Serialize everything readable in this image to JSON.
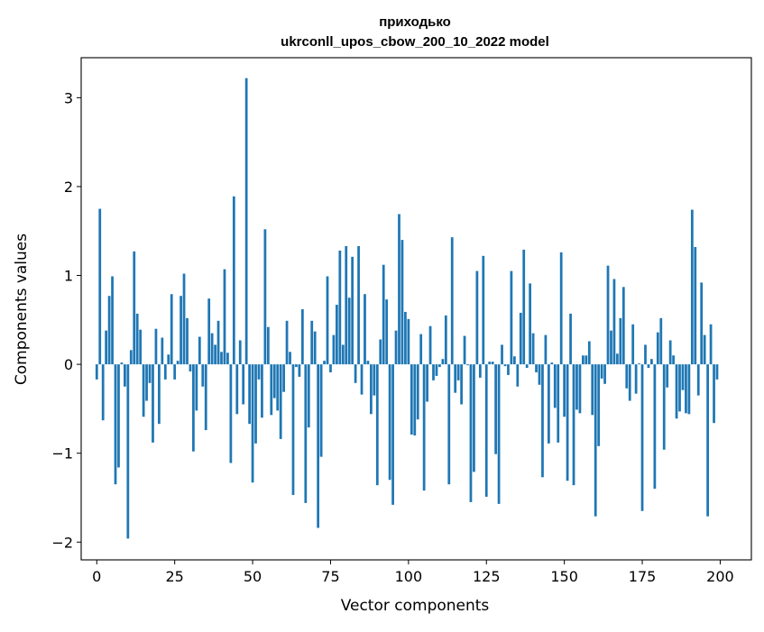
{
  "chart_data": {
    "type": "bar",
    "title_line1": "приходько",
    "title_line2": "ukrconll_upos_cbow_200_10_2022 model",
    "xlabel": "Vector components",
    "ylabel": "Components values",
    "xlim": [
      -5,
      210
    ],
    "ylim": [
      -2.2,
      3.45
    ],
    "xticks": [
      0,
      25,
      50,
      75,
      100,
      125,
      150,
      175,
      200
    ],
    "xtick_labels": [
      "0",
      "25",
      "50",
      "75",
      "100",
      "125",
      "150",
      "175",
      "200"
    ],
    "yticks": [
      -2,
      -1,
      0,
      1,
      2,
      3
    ],
    "ytick_labels": [
      "−2",
      "−1",
      "0",
      "1",
      "2",
      "3"
    ],
    "bar_color": "#1f77b4",
    "grid": false,
    "legend": "none",
    "x": [
      0,
      1,
      2,
      3,
      4,
      5,
      6,
      7,
      8,
      9,
      10,
      11,
      12,
      13,
      14,
      15,
      16,
      17,
      18,
      19,
      20,
      21,
      22,
      23,
      24,
      25,
      26,
      27,
      28,
      29,
      30,
      31,
      32,
      33,
      34,
      35,
      36,
      37,
      38,
      39,
      40,
      41,
      42,
      43,
      44,
      45,
      46,
      47,
      48,
      49,
      50,
      51,
      52,
      53,
      54,
      55,
      56,
      57,
      58,
      59,
      60,
      61,
      62,
      63,
      64,
      65,
      66,
      67,
      68,
      69,
      70,
      71,
      72,
      73,
      74,
      75,
      76,
      77,
      78,
      79,
      80,
      81,
      82,
      83,
      84,
      85,
      86,
      87,
      88,
      89,
      90,
      91,
      92,
      93,
      94,
      95,
      96,
      97,
      98,
      99,
      100,
      101,
      102,
      103,
      104,
      105,
      106,
      107,
      108,
      109,
      110,
      111,
      112,
      113,
      114,
      115,
      116,
      117,
      118,
      119,
      120,
      121,
      122,
      123,
      124,
      125,
      126,
      127,
      128,
      129,
      130,
      131,
      132,
      133,
      134,
      135,
      136,
      137,
      138,
      139,
      140,
      141,
      142,
      143,
      144,
      145,
      146,
      147,
      148,
      149,
      150,
      151,
      152,
      153,
      154,
      155,
      156,
      157,
      158,
      159,
      160,
      161,
      162,
      163,
      164,
      165,
      166,
      167,
      168,
      169,
      170,
      171,
      172,
      173,
      174,
      175,
      176,
      177,
      178,
      179,
      180,
      181,
      182,
      183,
      184,
      185,
      186,
      187,
      188,
      189,
      190,
      191,
      192,
      193,
      194,
      195,
      196,
      197,
      198,
      199
    ],
    "values": [
      -0.17,
      1.75,
      -0.63,
      0.38,
      0.77,
      0.99,
      -1.35,
      -1.16,
      0.02,
      -0.25,
      -1.96,
      0.16,
      1.27,
      0.57,
      0.39,
      -0.59,
      -0.41,
      -0.21,
      -0.88,
      0.4,
      -0.67,
      0.3,
      -0.17,
      0.11,
      0.79,
      -0.17,
      0.04,
      0.77,
      1.02,
      0.52,
      -0.08,
      -0.98,
      -0.52,
      0.31,
      -0.25,
      -0.74,
      0.74,
      0.35,
      0.22,
      0.49,
      0.14,
      1.07,
      0.13,
      -1.11,
      1.89,
      -0.56,
      0.27,
      -0.45,
      3.22,
      -0.67,
      -1.33,
      -0.89,
      -0.17,
      -0.6,
      1.52,
      0.42,
      -0.57,
      -0.38,
      -0.52,
      -0.84,
      -0.31,
      0.49,
      0.14,
      -1.47,
      -0.03,
      -0.14,
      0.62,
      -1.56,
      -0.71,
      0.49,
      0.37,
      -1.84,
      -1.04,
      0.04,
      0.99,
      -0.09,
      0.33,
      0.67,
      1.28,
      0.22,
      1.33,
      0.75,
      1.21,
      -0.21,
      1.33,
      -0.34,
      0.79,
      0.04,
      -0.56,
      -0.35,
      -1.36,
      0.28,
      1.12,
      0.73,
      -1.3,
      -1.58,
      0.38,
      1.69,
      1.4,
      0.59,
      0.51,
      -0.79,
      -0.8,
      -0.62,
      0.34,
      -1.42,
      -0.42,
      0.43,
      -0.18,
      -0.13,
      -0.03,
      0.06,
      0.55,
      -1.35,
      1.43,
      -0.32,
      -0.18,
      -0.45,
      0.32,
      -0.01,
      -1.55,
      -1.21,
      1.05,
      -0.15,
      1.22,
      -1.49,
      0.03,
      0.03,
      -1.01,
      -1.57,
      0.22,
      -0.02,
      -0.12,
      1.05,
      0.09,
      -0.25,
      0.58,
      1.29,
      -0.04,
      0.91,
      0.35,
      -0.09,
      -0.23,
      -1.27,
      0.33,
      -0.89,
      0.02,
      -0.49,
      -0.88,
      1.26,
      -0.59,
      -1.31,
      0.57,
      -1.36,
      -0.51,
      -0.55,
      0.1,
      0.1,
      0.26,
      -0.57,
      -1.71,
      -0.92,
      -0.16,
      -0.22,
      1.11,
      0.38,
      0.96,
      0.12,
      0.52,
      0.87,
      -0.27,
      -0.41,
      0.45,
      -0.33,
      0.01,
      -1.65,
      0.22,
      -0.04,
      0.06,
      -1.4,
      0.36,
      0.52,
      -0.96,
      -0.26,
      0.27,
      0.1,
      -0.61,
      -0.53,
      -0.29,
      -0.55,
      -0.56,
      1.74,
      1.32,
      -0.35,
      0.92,
      0.33,
      -1.71,
      0.45,
      -0.66,
      -0.17
    ]
  }
}
